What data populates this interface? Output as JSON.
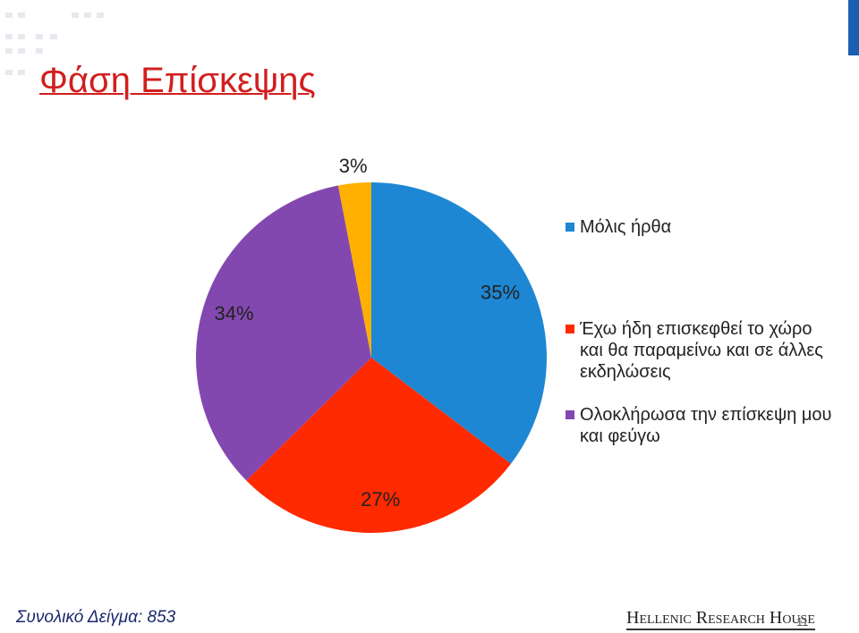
{
  "slide": {
    "title": "Φάση Επίσκεψης",
    "sample_note": "Συνολικό Δείγμα: 853",
    "logo": "Hellenic Research House",
    "page_number": "11"
  },
  "chart_data": {
    "type": "pie",
    "categories": [
      "Μόλις ήρθα",
      "Έχω ήδη επισκεφθεί το χώρο και θα παραμείνω και σε άλλες εκδηλώσεις",
      "Ολοκλήρωσα την επίσκεψη μου και φεύγω",
      null
    ],
    "values": [
      35,
      27,
      34,
      3
    ],
    "value_labels": [
      "35%",
      "27%",
      "34%",
      "3%"
    ],
    "colors": [
      "#1e87d3",
      "#ff2a00",
      "#8348b0",
      "#ffb000"
    ],
    "legend": "right"
  }
}
